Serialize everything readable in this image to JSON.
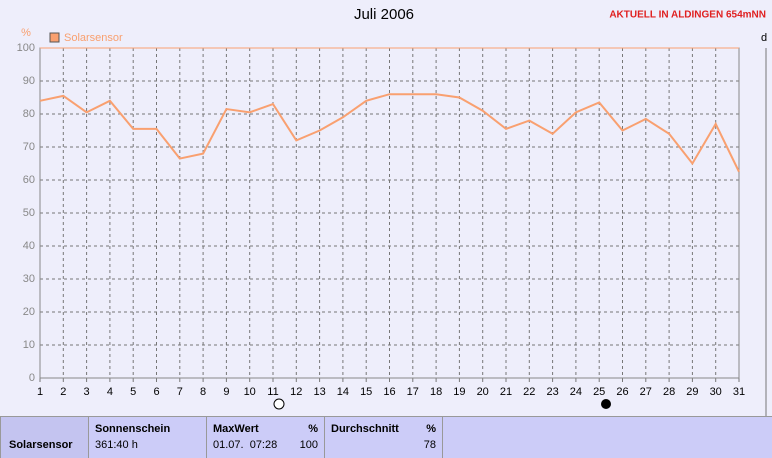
{
  "chart_data": {
    "type": "line",
    "title": "Juli 2006",
    "note": "AKTUELL IN ALDINGEN 654mNN",
    "y_label": "%",
    "y2_label": "d",
    "categories": [
      "1",
      "2",
      "3",
      "4",
      "5",
      "6",
      "7",
      "8",
      "9",
      "10",
      "11",
      "12",
      "13",
      "14",
      "15",
      "16",
      "17",
      "18",
      "19",
      "20",
      "21",
      "22",
      "23",
      "24",
      "25",
      "26",
      "27",
      "28",
      "29",
      "30",
      "31"
    ],
    "series": [
      {
        "name": "Solarsensor",
        "color": "#f9a070",
        "values": [
          84,
          85.5,
          80.5,
          84,
          75.5,
          75.5,
          66.5,
          68,
          81.5,
          80.5,
          83,
          72,
          75,
          79,
          84,
          86,
          86,
          86,
          85,
          81,
          75.5,
          78,
          74,
          80.5,
          83.5,
          75,
          78.5,
          74,
          65,
          77,
          62.5
        ]
      }
    ],
    "ylim": [
      0,
      100
    ],
    "yticks": [
      0,
      10,
      20,
      30,
      40,
      50,
      60,
      70,
      80,
      90,
      100
    ],
    "grid": true
  },
  "table": {
    "row_label": "Solarsensor",
    "columns": [
      {
        "header": "Sonnenschein",
        "values": [
          "361:40 h"
        ]
      },
      {
        "header": "MaxWert",
        "unit": "%",
        "values": [
          "01.07.  07:28",
          100
        ]
      },
      {
        "header": "Durchschnitt",
        "unit": "%",
        "values": [
          78
        ]
      }
    ]
  }
}
